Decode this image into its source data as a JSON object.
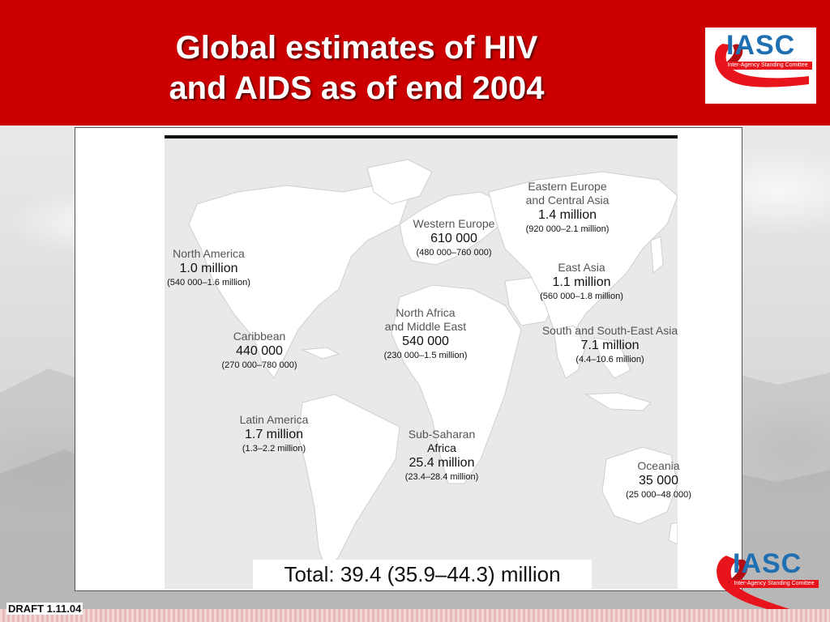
{
  "slide": {
    "title_line1": "Global estimates of HIV",
    "title_line2": "and AIDS as of end 2004",
    "header_color": "#cc0000",
    "draft_label": "DRAFT 1.11.04"
  },
  "logo": {
    "name": "IASC",
    "subtitle": "Inter-Agency Standing Comittee",
    "text_color": "#1f6fb3",
    "ribbon_color": "#e8141c"
  },
  "map": {
    "regions": [
      {
        "name": "North America",
        "value": "1.0 million",
        "range": "(540 000–1.6 million)"
      },
      {
        "name": "Caribbean",
        "value": "440 000",
        "range": "(270 000–780 000)"
      },
      {
        "name": "Latin America",
        "value": "1.7 million",
        "range": "(1.3–2.2 million)"
      },
      {
        "name": "Western Europe",
        "value": "610 000",
        "range": "(480 000–760 000)"
      },
      {
        "name": "North Africa\nand Middle East",
        "name_line1": "North Africa",
        "name_line2": "and Middle East",
        "value": "540 000",
        "range": "(230 000–1.5 million)"
      },
      {
        "name_line1": "Sub-Saharan",
        "name_line2": "Africa",
        "value": "25.4 million",
        "range": "(23.4–28.4 million)"
      },
      {
        "name_line1": "Eastern Europe",
        "name_line2": "and Central Asia",
        "value": "1.4 million",
        "range": "(920 000–2.1 million)"
      },
      {
        "name": "East Asia",
        "value": "1.1 million",
        "range": "(560 000–1.8 million)"
      },
      {
        "name": "South and South-East Asia",
        "value": "7.1 million",
        "range": "(4.4–10.6 million)"
      },
      {
        "name": "Oceania",
        "value": "35 000",
        "range": "(25 000–48 000)"
      }
    ],
    "total": "Total: 39.4 (35.9–44.3) million"
  }
}
